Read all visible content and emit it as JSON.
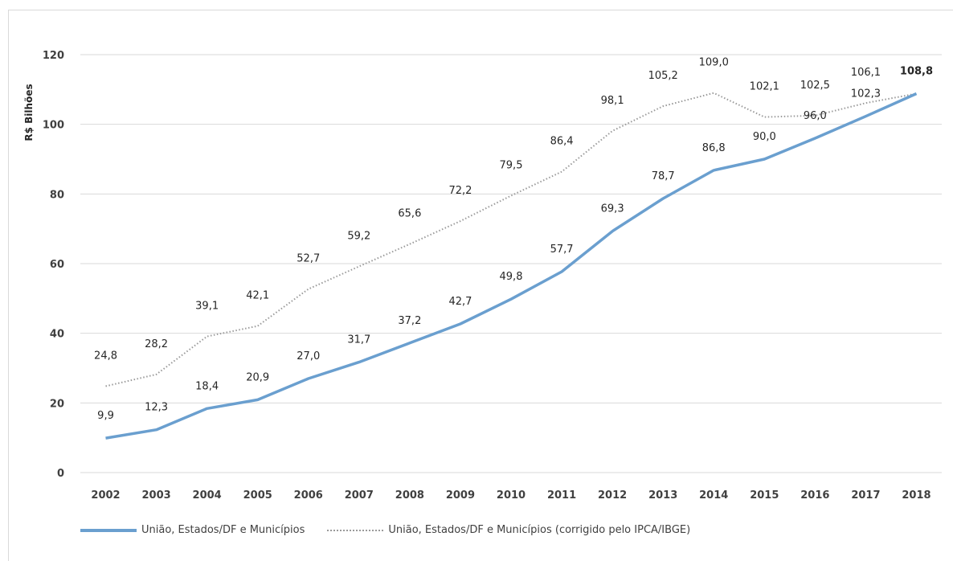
{
  "chart_data": {
    "type": "line",
    "title": "",
    "xlabel": "",
    "ylabel": "R$ Bilhões",
    "ylim": [
      0,
      120
    ],
    "yticks": [
      0,
      20,
      40,
      60,
      80,
      100,
      120
    ],
    "grid": true,
    "legend": "bottom",
    "categories": [
      "2002",
      "2003",
      "2004",
      "2005",
      "2006",
      "2007",
      "2008",
      "2009",
      "2010",
      "2011",
      "2012",
      "2013",
      "2014",
      "2015",
      "2016",
      "2017",
      "2018"
    ],
    "series": [
      {
        "name": "União, Estados/DF e Municípios",
        "style": "solid",
        "color": "#6a9fcf",
        "values": [
          9.9,
          12.3,
          18.4,
          20.9,
          27.0,
          31.7,
          37.2,
          42.7,
          49.8,
          57.7,
          69.3,
          78.7,
          86.8,
          90.0,
          96.0,
          102.3,
          108.8
        ],
        "labels": [
          "9,9",
          "12,3",
          "18,4",
          "20,9",
          "27,0",
          "31,7",
          "37,2",
          "42,7",
          "49,8",
          "57,7",
          "69,3",
          "78,7",
          "86,8",
          "90,0",
          "96,0",
          "102,3",
          "108,8"
        ]
      },
      {
        "name": "União, Estados/DF e Municípios (corrigido pelo IPCA/IBGE)",
        "style": "dotted",
        "color": "#9a9a9a",
        "values": [
          24.8,
          28.2,
          39.1,
          42.1,
          52.7,
          59.2,
          65.6,
          72.2,
          79.5,
          86.4,
          98.1,
          105.2,
          109.0,
          102.1,
          102.5,
          106.1,
          108.8
        ],
        "labels": [
          "24,8",
          "28,2",
          "39,1",
          "42,1",
          "52,7",
          "59,2",
          "65,6",
          "72,2",
          "79,5",
          "86,4",
          "98,1",
          "105,2",
          "109,0",
          "102,1",
          "102,5",
          "106,1",
          "108,8"
        ]
      }
    ]
  }
}
